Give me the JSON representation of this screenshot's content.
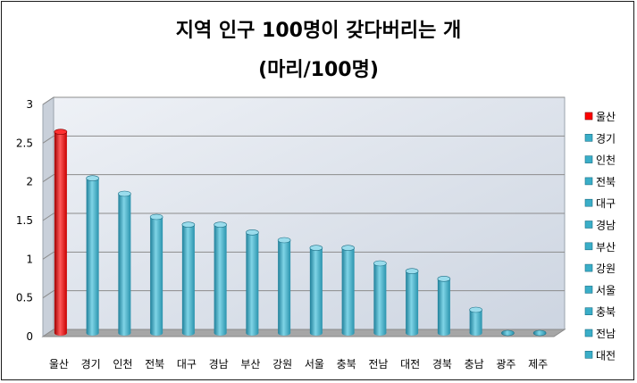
{
  "chart_data": {
    "type": "bar",
    "title": "지역 인구 100명이 갖다버리는 개",
    "subtitle": "(마리/100명)",
    "categories": [
      "울산",
      "경기",
      "인천",
      "전북",
      "대구",
      "경남",
      "부산",
      "강원",
      "서울",
      "충북",
      "전남",
      "대전",
      "경북",
      "충남",
      "광주",
      "제주"
    ],
    "values": [
      2.6,
      2.0,
      1.8,
      1.5,
      1.4,
      1.4,
      1.3,
      1.2,
      1.1,
      1.1,
      0.9,
      0.8,
      0.7,
      0.3,
      0.0,
      0.0
    ],
    "ylim": [
      0,
      3
    ],
    "yticks": [
      "0",
      "0.5",
      "1",
      "1.5",
      "2",
      "2.5",
      "3"
    ],
    "grid": true,
    "legend_position": "right",
    "legend": [
      "울산",
      "경기",
      "인천",
      "전북",
      "대구",
      "경남",
      "부산",
      "강원",
      "서울",
      "충북",
      "전남",
      "대전"
    ],
    "colors": {
      "highlight": "#ff0000",
      "bar": "#3aaec8",
      "wall": "#dde3ec",
      "floor": "#a6a6a6",
      "grid": "#8c8c8c"
    }
  }
}
